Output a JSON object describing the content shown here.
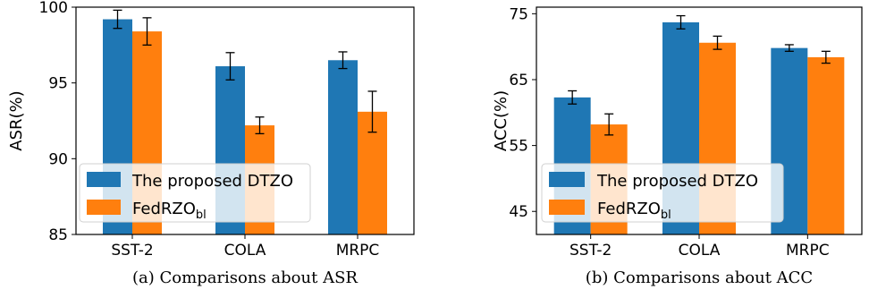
{
  "colors": {
    "series1": "#1f77b4",
    "series2": "#ff7f0e",
    "axis": "#000000"
  },
  "legend": {
    "series1": "The proposed DTZO",
    "series2_base": "FedRZO",
    "series2_sub": "bl"
  },
  "chart_data": [
    {
      "type": "bar",
      "categories": [
        "SST-2",
        "COLA",
        "MRPC"
      ],
      "ylabel": "ASR(%)",
      "ylim": [
        85,
        100
      ],
      "yticks": [
        85,
        90,
        95,
        100
      ],
      "caption": "(a)  Comparisons about ASR",
      "legend_position": "lower-left",
      "series": [
        {
          "name": "The proposed DTZO",
          "values": [
            99.2,
            96.1,
            96.5
          ],
          "errors": [
            0.6,
            0.9,
            0.55
          ]
        },
        {
          "name": "FedRZO_bl",
          "values": [
            98.4,
            92.2,
            93.1
          ],
          "errors": [
            0.9,
            0.55,
            1.35
          ]
        }
      ]
    },
    {
      "type": "bar",
      "categories": [
        "SST-2",
        "COLA",
        "MRPC"
      ],
      "ylabel": "ACC(%)",
      "ylim": [
        41.5,
        76
      ],
      "yticks": [
        45,
        55,
        65,
        75
      ],
      "caption": "(b)  Comparisons about ACC",
      "legend_position": "lower-left",
      "series": [
        {
          "name": "The proposed DTZO",
          "values": [
            62.3,
            73.7,
            69.8
          ],
          "errors": [
            1.0,
            1.0,
            0.5
          ]
        },
        {
          "name": "FedRZO_bl",
          "values": [
            58.2,
            70.6,
            68.4
          ],
          "errors": [
            1.6,
            1.0,
            0.9
          ]
        }
      ]
    }
  ]
}
